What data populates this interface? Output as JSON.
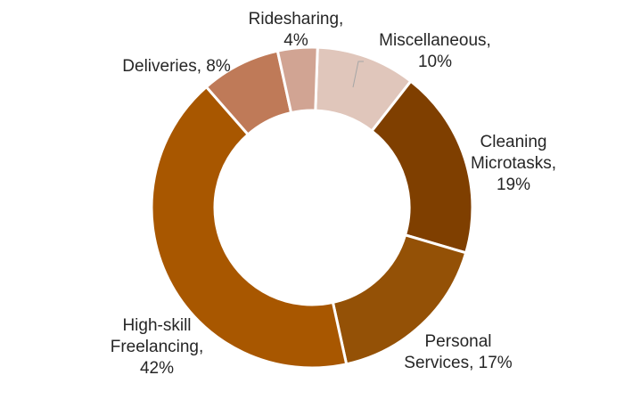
{
  "chart_data": {
    "type": "pie",
    "subtype": "donut",
    "title": "",
    "slices": [
      {
        "label_lines": [
          "Miscellaneous,",
          "10%"
        ],
        "value": 10,
        "color": "#e0c6bb"
      },
      {
        "label_lines": [
          "Cleaning",
          "Microtasks,",
          "19%"
        ],
        "value": 19,
        "color": "#7f3f00"
      },
      {
        "label_lines": [
          "Personal",
          "Services, 17%"
        ],
        "value": 17,
        "color": "#945106"
      },
      {
        "label_lines": [
          "High-skill",
          "Freelancing,",
          "42%"
        ],
        "value": 42,
        "color": "#a85700"
      },
      {
        "label_lines": [
          "Deliveries, 8%"
        ],
        "value": 8,
        "color": "#bf7a58"
      },
      {
        "label_lines": [
          "Ridesharing,",
          "4%"
        ],
        "value": 4,
        "color": "#d1a493"
      }
    ]
  }
}
